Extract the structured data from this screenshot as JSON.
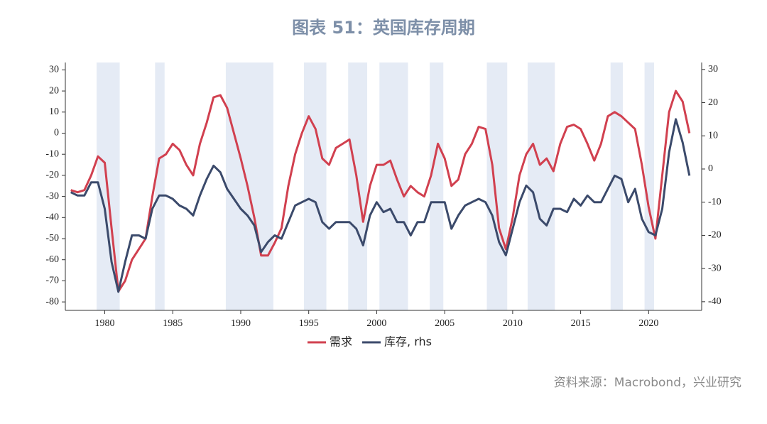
{
  "chart_data": {
    "type": "line",
    "title": "图表 51：英国库存周期",
    "source": "资料来源：Macrobond，兴业研究",
    "x": [
      1977.5,
      1978,
      1978.5,
      1979,
      1979.5,
      1980,
      1980.5,
      1981,
      1981.5,
      1982,
      1982.5,
      1983,
      1983.5,
      1984,
      1984.5,
      1985,
      1985.5,
      1986,
      1986.5,
      1987,
      1987.5,
      1988,
      1988.5,
      1989,
      1989.5,
      1990,
      1990.5,
      1991,
      1991.5,
      1992,
      1992.5,
      1993,
      1993.5,
      1994,
      1994.5,
      1995,
      1995.5,
      1996,
      1996.5,
      1997,
      1997.5,
      1998,
      1998.5,
      1999,
      1999.5,
      2000,
      2000.5,
      2001,
      2001.5,
      2002,
      2002.5,
      2003,
      2003.5,
      2004,
      2004.5,
      2005,
      2005.5,
      2006,
      2006.5,
      2007,
      2007.5,
      2008,
      2008.5,
      2009,
      2009.5,
      2010,
      2010.5,
      2011,
      2011.5,
      2012,
      2012.5,
      2013,
      2013.5,
      2014,
      2014.5,
      2015,
      2015.5,
      2016,
      2016.5,
      2017,
      2017.5,
      2018,
      2018.5,
      2019,
      2019.5,
      2020,
      2020.5,
      2021,
      2021.5,
      2022,
      2022.5,
      2023
    ],
    "series": [
      {
        "name": "需求",
        "color": "#d1404f",
        "values": [
          -27,
          -28,
          -27,
          -20,
          -11,
          -14,
          -45,
          -75,
          -70,
          -60,
          -55,
          -50,
          -30,
          -12,
          -10,
          -5,
          -8,
          -15,
          -20,
          -5,
          5,
          17,
          18,
          12,
          0,
          -12,
          -25,
          -40,
          -58,
          -58,
          -52,
          -45,
          -25,
          -10,
          0,
          8,
          2,
          -12,
          -15,
          -7,
          -5,
          -3,
          -20,
          -42,
          -25,
          -15,
          -15,
          -13,
          -22,
          -30,
          -25,
          -28,
          -30,
          -20,
          -5,
          -12,
          -25,
          -22,
          -10,
          -5,
          3,
          2,
          -15,
          -45,
          -55,
          -40,
          -20,
          -10,
          -5,
          -15,
          -12,
          -18,
          -5,
          3,
          4,
          2,
          -5,
          -13,
          -5,
          8,
          10,
          8,
          5,
          2,
          -15,
          -35,
          -50,
          -20,
          10,
          20,
          15,
          0
        ]
      },
      {
        "name": "库存, rhs",
        "color": "#3b4a6b",
        "axis": "y2",
        "values": [
          -7,
          -8,
          -8,
          -4,
          -4,
          -12,
          -28,
          -37,
          -28,
          -20,
          -20,
          -21,
          -12,
          -8,
          -8,
          -9,
          -11,
          -12,
          -14,
          -8,
          -3,
          1,
          -1,
          -6,
          -9,
          -12,
          -14,
          -17,
          -25,
          -22,
          -20,
          -21,
          -16,
          -11,
          -10,
          -9,
          -10,
          -16,
          -18,
          -16,
          -16,
          -16,
          -18,
          -23,
          -14,
          -10,
          -13,
          -12,
          -16,
          -16,
          -20,
          -16,
          -16,
          -10,
          -10,
          -10,
          -18,
          -14,
          -11,
          -10,
          -9,
          -10,
          -14,
          -22,
          -26,
          -18,
          -10,
          -5,
          -7,
          -15,
          -17,
          -12,
          -12,
          -13,
          -9,
          -11,
          -8,
          -10,
          -10,
          -6,
          -2,
          -3,
          -10,
          -6,
          -15,
          -19,
          -20,
          -12,
          5,
          15,
          8,
          -2
        ]
      }
    ],
    "shaded_periods": [
      [
        1979.4,
        1981.1
      ],
      [
        1983.7,
        1984.4
      ],
      [
        1988.9,
        1992.4
      ],
      [
        1994.65,
        1996.3
      ],
      [
        1997.9,
        1999.3
      ],
      [
        2000.2,
        2002.3
      ],
      [
        2003.9,
        2004.9
      ],
      [
        2008.1,
        2009.6
      ],
      [
        2011.1,
        2013.1
      ],
      [
        2017.2,
        2018.1
      ],
      [
        2019.7,
        2020.4
      ]
    ],
    "shade_color": "#e5ebf5",
    "xlim": [
      1977.1,
      2023.9
    ],
    "xticks": [
      1980,
      1985,
      1990,
      1995,
      2000,
      2005,
      2010,
      2015,
      2020
    ],
    "ylim": [
      -84,
      33.5
    ],
    "yticks": [
      -80,
      -70,
      -60,
      -50,
      -40,
      -30,
      -20,
      -10,
      0,
      10,
      20,
      30
    ],
    "y2lim": [
      -42.6,
      32.1
    ],
    "y2ticks": [
      -40,
      -30,
      -20,
      -10,
      0,
      10,
      20,
      30
    ],
    "legend": "bottom"
  }
}
